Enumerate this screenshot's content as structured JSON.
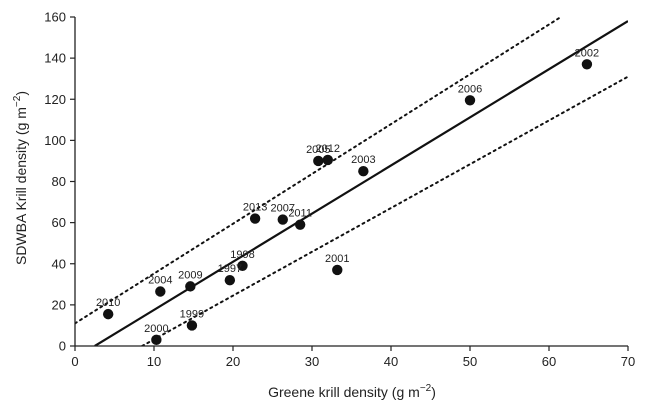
{
  "chart_data": {
    "type": "scatter",
    "xlabel": {
      "main": "Greene krill density (g m",
      "sup": "−2",
      "end": ")"
    },
    "ylabel": {
      "main": "SDWBA Krill density (g m",
      "sup": "−2",
      "end": ")"
    },
    "xlim": [
      0,
      70
    ],
    "ylim": [
      0,
      160
    ],
    "xticks": [
      0,
      10,
      20,
      30,
      40,
      50,
      60,
      70
    ],
    "yticks": [
      0,
      20,
      40,
      60,
      80,
      100,
      120,
      140,
      160
    ],
    "grid": false,
    "points": [
      {
        "label": "2010",
        "x": 4.2,
        "y": 15.5
      },
      {
        "label": "2000",
        "x": 10.3,
        "y": 3
      },
      {
        "label": "2004",
        "x": 10.8,
        "y": 26.5
      },
      {
        "label": "2009",
        "x": 14.6,
        "y": 29
      },
      {
        "label": "1999",
        "x": 14.8,
        "y": 10
      },
      {
        "label": "1997",
        "x": 19.6,
        "y": 32
      },
      {
        "label": "1998",
        "x": 21.2,
        "y": 39
      },
      {
        "label": "2013",
        "x": 22.8,
        "y": 62
      },
      {
        "label": "2007",
        "x": 26.3,
        "y": 61.5
      },
      {
        "label": "2011",
        "x": 28.5,
        "y": 59
      },
      {
        "label": "2005",
        "x": 30.8,
        "y": 90
      },
      {
        "label": "2012",
        "x": 32.0,
        "y": 90.5
      },
      {
        "label": "2001",
        "x": 33.2,
        "y": 37
      },
      {
        "label": "2003",
        "x": 36.5,
        "y": 85
      },
      {
        "label": "2006",
        "x": 50.0,
        "y": 119.5
      },
      {
        "label": "2002",
        "x": 64.8,
        "y": 137
      }
    ],
    "lines": [
      {
        "kind": "regression",
        "style": "solid",
        "from": [
          2.5,
          0
        ],
        "to": [
          70,
          158
        ]
      },
      {
        "kind": "upper-bound",
        "style": "dotted",
        "from": [
          0,
          11
        ],
        "to": [
          61.5,
          160
        ]
      },
      {
        "kind": "lower-bound",
        "style": "dotted",
        "from": [
          8.5,
          0
        ],
        "to": [
          70,
          131
        ]
      }
    ]
  }
}
